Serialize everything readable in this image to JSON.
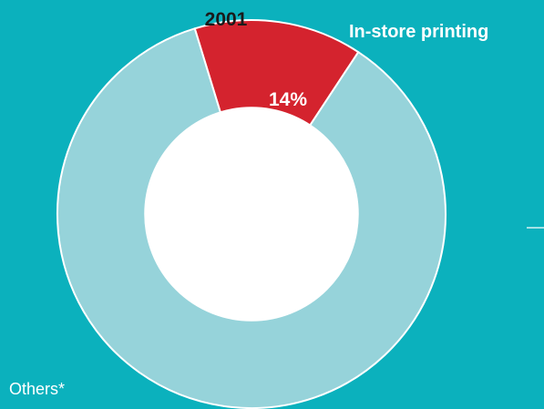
{
  "colors": {
    "background": "#0bb1bd",
    "highlight": "#d4232e",
    "others": "#96d3da",
    "stroke": "#ffffff",
    "hole": "#ffffff"
  },
  "chart_data": {
    "type": "pie",
    "title": "2001",
    "labels": [
      "In-store printing",
      "Others*"
    ],
    "values": [
      14,
      86
    ],
    "value_labels": [
      "14%",
      ""
    ],
    "donut": true
  }
}
